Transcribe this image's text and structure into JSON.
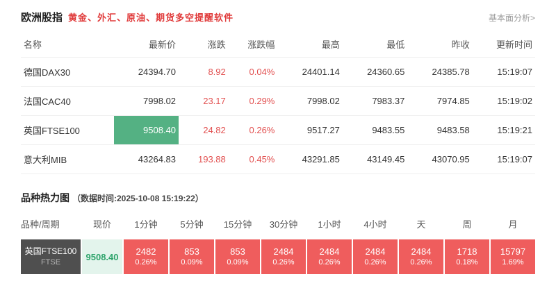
{
  "page": {
    "title": "欧洲股指",
    "subtitle": "黄金、外汇、原油、期货多空提醒软件",
    "top_right_link": "基本面分析>"
  },
  "colors": {
    "up_red": "#e25050",
    "flash_green": "#54b183",
    "heat_red": "#ef5d5d",
    "symbol_dark": "#4f4f4f",
    "price_green_bg": "#e3f4ec",
    "price_green_text": "#2fa46c"
  },
  "quotes_table": {
    "headers": [
      "名称",
      "最新价",
      "涨跌",
      "涨跌幅",
      "最高",
      "最低",
      "昨收",
      "更新时间"
    ],
    "rows": [
      {
        "name": "德国DAX30",
        "last": "24394.70",
        "change": "8.92",
        "change_pct": "0.04%",
        "high": "24401.14",
        "low": "24360.65",
        "prev_close": "24385.78",
        "time": "15:19:07"
      },
      {
        "name": "法国CAC40",
        "last": "7998.02",
        "change": "23.17",
        "change_pct": "0.29%",
        "high": "7998.02",
        "low": "7983.37",
        "prev_close": "7974.85",
        "time": "15:19:02"
      },
      {
        "name": "英国FTSE100",
        "last": "9508.40",
        "change": "24.82",
        "change_pct": "0.26%",
        "high": "9517.27",
        "low": "9483.55",
        "prev_close": "9483.58",
        "time": "15:19:21"
      },
      {
        "name": "意大利MIB",
        "last": "43264.83",
        "change": "193.88",
        "change_pct": "0.45%",
        "high": "43291.85",
        "low": "43149.45",
        "prev_close": "43070.95",
        "time": "15:19:07"
      }
    ]
  },
  "heatmap": {
    "title": "品种热力图",
    "timestamp_note": "（数据时间:2025-10-08 15:19:22）",
    "headers": [
      "品种/周期",
      "现价",
      "1分钟",
      "5分钟",
      "15分钟",
      "30分钟",
      "1小时",
      "4小时",
      "天",
      "周",
      "月"
    ],
    "row": {
      "symbol_line1": "英国FTSE100",
      "symbol_line2": "FTSE",
      "price": "9508.40",
      "cells": [
        {
          "value": "2482",
          "pct": "0.26%"
        },
        {
          "value": "853",
          "pct": "0.09%"
        },
        {
          "value": "853",
          "pct": "0.09%"
        },
        {
          "value": "2484",
          "pct": "0.26%"
        },
        {
          "value": "2484",
          "pct": "0.26%"
        },
        {
          "value": "2484",
          "pct": "0.26%"
        },
        {
          "value": "2484",
          "pct": "0.26%"
        },
        {
          "value": "1718",
          "pct": "0.18%"
        },
        {
          "value": "15797",
          "pct": "1.69%"
        }
      ]
    }
  }
}
